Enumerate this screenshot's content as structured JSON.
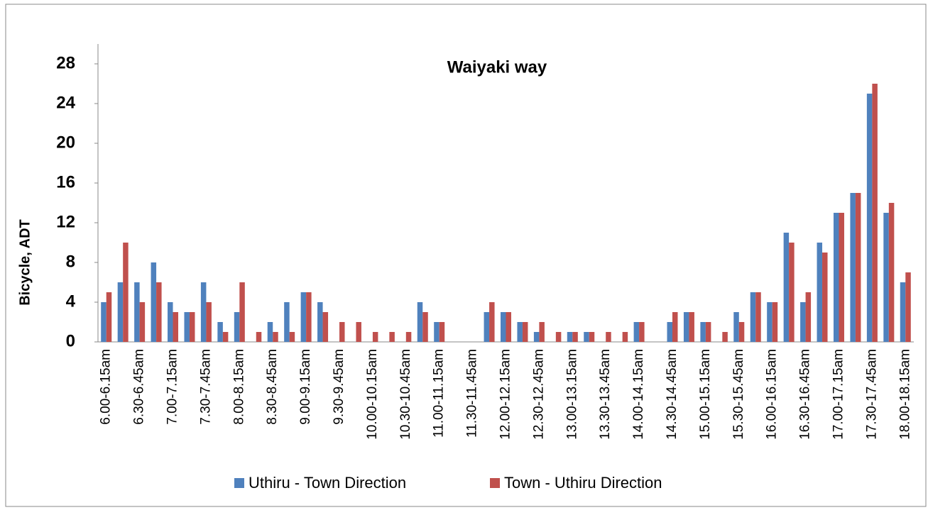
{
  "chart_data": {
    "type": "bar",
    "title": "Waiyaki way",
    "y_label": "Bicycle,  ADT",
    "categories": [
      "6.00-6.15am",
      null,
      "6.30-6.45am",
      null,
      "7.00-7.15am",
      null,
      "7.30-7.45am",
      null,
      "8.00-8.15am",
      null,
      "8.30-8.45am",
      null,
      "9.00-9.15am",
      null,
      "9.30-9.45am",
      null,
      "10.00-10.15am",
      null,
      "10.30-10.45am",
      null,
      "11.00-11.15am",
      null,
      "11.30-11.45am",
      null,
      "12.00-12.15am",
      null,
      "12.30-12.45am",
      null,
      "13.00-13.15am",
      null,
      "13.30-13.45am",
      null,
      "14.00-14.15am",
      null,
      "14.30-14.45am",
      null,
      "15.00-15.15am",
      null,
      "15.30-15.45am",
      null,
      "16.00-16.15am",
      null,
      "16.30-16.45am",
      null,
      "17.00-17.15am",
      null,
      "17.30-17.45am",
      null,
      "18.00-18.15am"
    ],
    "series": [
      {
        "name": "Uthiru - Town  Direction",
        "color": "#4f81bd",
        "values": [
          4,
          6,
          6,
          8,
          4,
          3,
          6,
          2,
          3,
          0,
          2,
          4,
          5,
          4,
          0,
          0,
          0,
          0,
          0,
          4,
          2,
          0,
          0,
          3,
          3,
          2,
          1,
          0,
          1,
          1,
          0,
          0,
          2,
          0,
          2,
          3,
          2,
          0,
          3,
          5,
          4,
          11,
          4,
          10,
          13,
          15,
          25,
          13,
          6
        ]
      },
      {
        "name": "Town - Uthiru  Direction",
        "color": "#c0504d",
        "values": [
          5,
          10,
          4,
          6,
          3,
          3,
          4,
          1,
          6,
          1,
          1,
          1,
          5,
          3,
          2,
          2,
          1,
          1,
          1,
          3,
          2,
          0,
          0,
          4,
          3,
          2,
          2,
          1,
          1,
          1,
          1,
          1,
          2,
          0,
          3,
          3,
          2,
          1,
          2,
          5,
          4,
          10,
          5,
          9,
          13,
          15,
          26,
          14,
          7
        ]
      }
    ],
    "ylim": [
      0,
      30
    ],
    "yticks": [
      0,
      4,
      8,
      12,
      16,
      20,
      24,
      28
    ],
    "grid": false,
    "legend": "bottom"
  }
}
